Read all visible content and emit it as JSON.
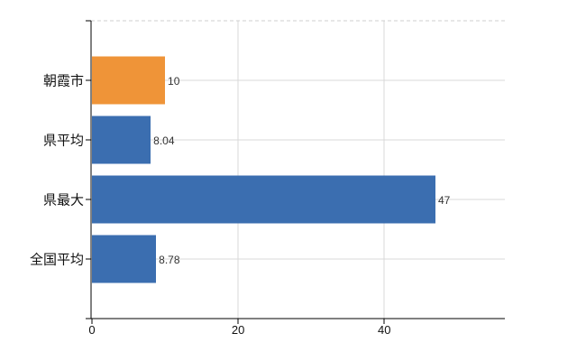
{
  "chart_data": {
    "type": "bar",
    "orientation": "horizontal",
    "title": "",
    "xlabel": "",
    "ylabel": "",
    "categories": [
      "朝霞市",
      "県平均",
      "県最大",
      "全国平均"
    ],
    "values": [
      10,
      8.04,
      47,
      8.78
    ],
    "value_labels": [
      "10",
      "8.04",
      "47",
      "8.78"
    ],
    "bar_colors": [
      "#EF9438",
      "#3B6EB0",
      "#3B6EB0",
      "#3B6EB0"
    ],
    "highlight_index": 0,
    "xlim": [
      0,
      56.5
    ],
    "xticks": [
      0,
      20,
      40
    ],
    "xtick_labels": [
      "0",
      "20",
      "40"
    ],
    "grid": true,
    "legend_position": "none"
  },
  "style": {
    "background": "#FFFFFF",
    "bar_orange": "#EF9438",
    "bar_blue": "#3B6EB0",
    "gridline": "#D8D8D8",
    "top_border": "#CFCFCF",
    "axis": "#000000",
    "category_text": "#111111",
    "value_text": "#333333",
    "tick_text": "#111111"
  }
}
